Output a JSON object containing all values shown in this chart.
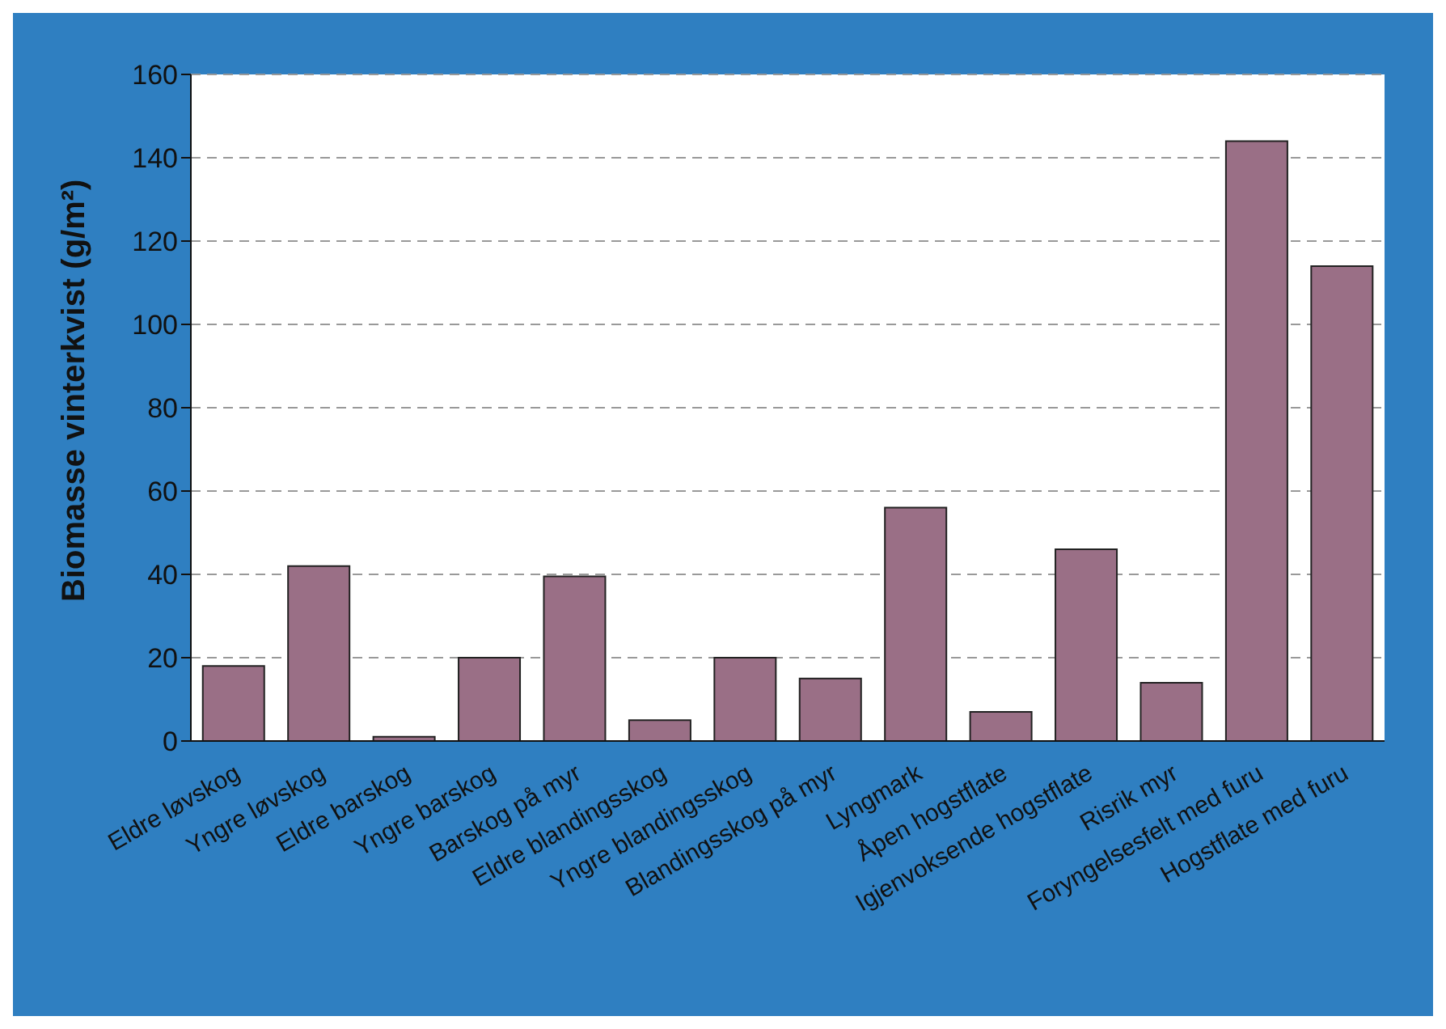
{
  "chart_data": {
    "type": "bar",
    "ylabel": "Biomasse vinterkvist (g/m²)",
    "categories": [
      "Eldre løvskog",
      "Yngre løvskog",
      "Eldre barskog",
      "Yngre barskog",
      "Barskog på myr",
      "Eldre blandingsskog",
      "Yngre blandingsskog",
      "Blandingsskog på myr",
      "Lyngmark",
      "Åpen hogstflate",
      "Igjenvoksende hogstflate",
      "Risrik myr",
      "Foryngelsesfelt med furu",
      "Hogstflate med furu"
    ],
    "values": [
      18,
      42,
      1,
      20,
      39.5,
      5,
      20,
      15,
      56,
      7,
      46,
      14,
      144,
      114
    ],
    "color": "#9a6f86",
    "ylim": [
      0,
      160
    ],
    "yticks": [
      0,
      20,
      40,
      60,
      80,
      100,
      120,
      140,
      160
    ],
    "grid": "y"
  }
}
